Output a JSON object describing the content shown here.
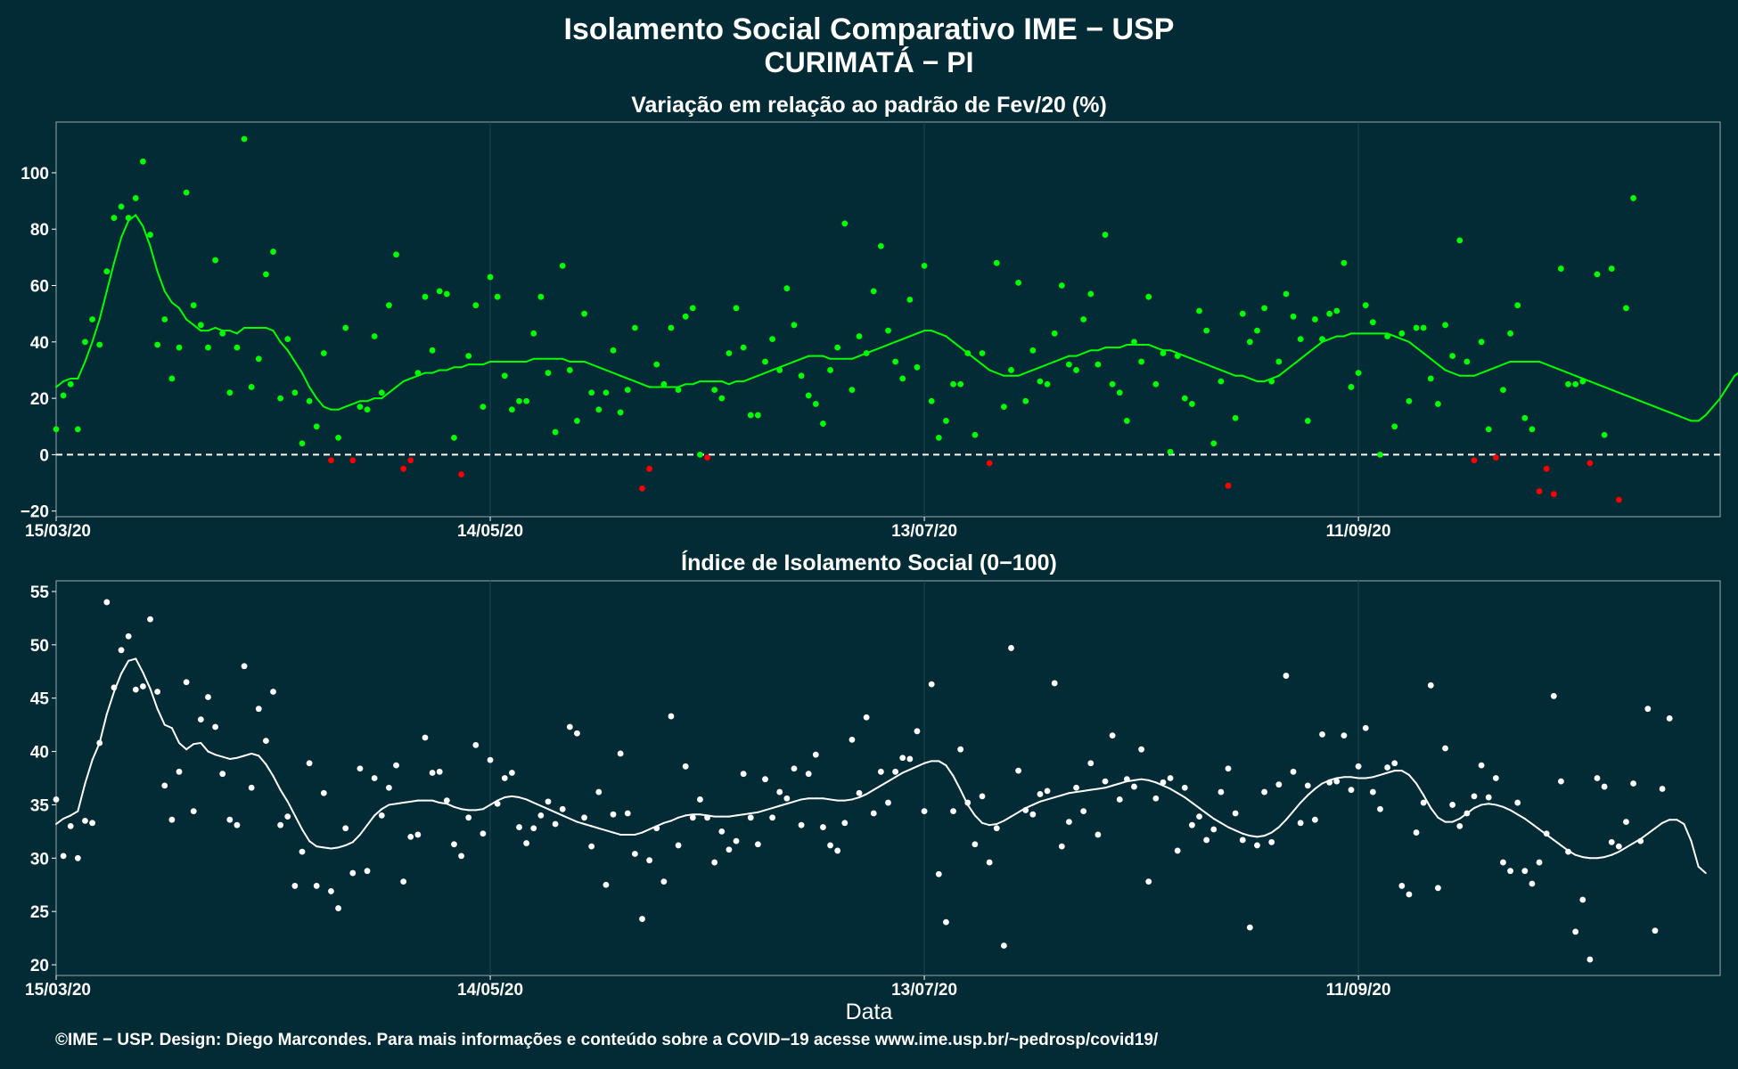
{
  "header": {
    "title": "Isolamento Social Comparativo IME − USP",
    "location": "CURIMATÁ − PI"
  },
  "xlabel": "Data",
  "footer": "©IME − USP. Design: Diego Marcondes. Para mais informações e conteúdo sobre a COVID−19 acesse www.ime.usp.br/~pedrosp/covid19/",
  "colors": {
    "background": "#022b35",
    "above": "#00ff00",
    "below": "#ff0000",
    "index": "#ffffff",
    "gridline": "#1f4450"
  },
  "chart_data": [
    {
      "type": "scatter",
      "title": "Variação em relação ao padrão de Fev/20 (%)",
      "x_start": "15/03/20",
      "x_ticks": [
        "15/03/20",
        "14/05/20",
        "13/07/20",
        "11/09/20"
      ],
      "x_tick_days": [
        0,
        60,
        120,
        180
      ],
      "xlim_days": [
        0,
        230
      ],
      "y_ticks": [
        -20,
        0,
        20,
        40,
        60,
        80,
        100
      ],
      "ylim": [
        -22,
        118
      ],
      "reference_line": 0,
      "values": [
        9,
        21,
        25,
        9,
        40,
        48,
        39,
        65,
        84,
        88,
        84,
        91,
        104,
        78,
        39,
        48,
        27,
        38,
        93,
        53,
        46,
        38,
        69,
        43,
        22,
        38,
        112,
        24,
        34,
        64,
        72,
        20,
        41,
        22,
        4,
        19,
        10,
        36,
        -2,
        6,
        45,
        -2,
        17,
        16,
        42,
        22,
        53,
        71,
        -5,
        -2,
        29,
        56,
        37,
        58,
        57,
        6,
        -7,
        35,
        53,
        17,
        63,
        56,
        28,
        16,
        19,
        19,
        43,
        56,
        29,
        8,
        67,
        30,
        12,
        50,
        22,
        16,
        22,
        37,
        15,
        23,
        45,
        -12,
        -5,
        32,
        25,
        45,
        23,
        49,
        52,
        0,
        -1,
        23,
        20,
        36,
        52,
        38,
        14,
        14,
        33,
        41,
        30,
        59,
        46,
        28,
        21,
        18,
        11,
        30,
        38,
        82,
        23,
        42,
        36,
        58,
        74,
        44,
        33,
        27,
        55,
        31,
        67,
        19,
        6,
        12,
        25,
        25,
        36,
        7,
        36,
        -3,
        68,
        17,
        30,
        61,
        19,
        37,
        26,
        25,
        43,
        60,
        32,
        30,
        48,
        57,
        32,
        78,
        25,
        22,
        12,
        40,
        33,
        56,
        25,
        36,
        1,
        35,
        20,
        18,
        51,
        44,
        4,
        26,
        -11,
        13,
        50,
        40,
        44,
        52,
        26,
        33,
        57,
        49,
        41,
        12,
        48,
        41,
        50,
        51,
        68,
        24,
        29,
        53,
        47,
        0,
        42,
        10,
        43,
        19,
        45,
        45,
        27,
        18,
        46,
        35,
        76,
        33,
        -2,
        40,
        9,
        -1,
        23,
        43,
        53,
        13,
        9,
        -13,
        -5,
        -14,
        66,
        25,
        25,
        26,
        -3,
        64,
        7,
        66,
        -16,
        52,
        91
      ],
      "smoothed": [
        24,
        26,
        27,
        27,
        33,
        40,
        48,
        58,
        68,
        77,
        83,
        85,
        81,
        74,
        65,
        58,
        54,
        52,
        48,
        46,
        44,
        44,
        45,
        44,
        44,
        43,
        45,
        45,
        45,
        45,
        44,
        40,
        37,
        33,
        29,
        24,
        20,
        17,
        16,
        16,
        17,
        18,
        19,
        19,
        20,
        20,
        22,
        24,
        26,
        27,
        28,
        29,
        29,
        30,
        30,
        31,
        31,
        32,
        32,
        32,
        33,
        33,
        33,
        33,
        33,
        33,
        34,
        34,
        34,
        34,
        34,
        33,
        33,
        33,
        32,
        31,
        30,
        29,
        28,
        27,
        26,
        25,
        24,
        24,
        24,
        24,
        24,
        25,
        25,
        26,
        26,
        26,
        26,
        25,
        26,
        26,
        27,
        28,
        29,
        30,
        31,
        32,
        33,
        34,
        35,
        35,
        35,
        34,
        34,
        34,
        34,
        35,
        36,
        37,
        38,
        39,
        40,
        41,
        42,
        43,
        44,
        44,
        43,
        42,
        40,
        38,
        36,
        34,
        32,
        30,
        29,
        28,
        28,
        28,
        29,
        30,
        31,
        32,
        33,
        34,
        35,
        35,
        36,
        37,
        37,
        38,
        38,
        38,
        39,
        39,
        39,
        39,
        38,
        37,
        37,
        36,
        35,
        34,
        33,
        32,
        31,
        30,
        29,
        28,
        28,
        27,
        26,
        26,
        27,
        28,
        30,
        32,
        34,
        36,
        38,
        40,
        41,
        42,
        42,
        43,
        43,
        43,
        43,
        43,
        43,
        42,
        41,
        40,
        38,
        36,
        34,
        32,
        30,
        29,
        28,
        28,
        28,
        29,
        30,
        31,
        32,
        33,
        33,
        33,
        33,
        33,
        32,
        31,
        30,
        29,
        28,
        27,
        26,
        25,
        24,
        23,
        22,
        21,
        20,
        19,
        18,
        17,
        16,
        15,
        14,
        13,
        12,
        12,
        14,
        17,
        20,
        24,
        28,
        30,
        31,
        33,
        37,
        41
      ]
    },
    {
      "type": "scatter",
      "title": "Índice de Isolamento Social (0−100)",
      "x_start": "15/03/20",
      "x_ticks": [
        "15/03/20",
        "14/05/20",
        "13/07/20",
        "11/09/20"
      ],
      "x_tick_days": [
        0,
        60,
        120,
        180
      ],
      "xlim_days": [
        0,
        230
      ],
      "y_ticks": [
        20,
        25,
        30,
        35,
        40,
        45,
        50,
        55
      ],
      "ylim": [
        19,
        56
      ],
      "values": [
        35.5,
        30.2,
        33,
        30,
        33.5,
        33.3,
        40.8,
        54,
        46,
        49.5,
        50.8,
        45.8,
        46.1,
        52.4,
        45.6,
        36.8,
        33.6,
        38.1,
        46.5,
        34.4,
        43,
        45.1,
        42.3,
        37.9,
        33.6,
        33.1,
        48,
        36.6,
        44,
        41,
        45.6,
        33.1,
        33.9,
        27.4,
        30.6,
        38.9,
        27.4,
        36.1,
        26.9,
        25.3,
        32.8,
        28.6,
        38.4,
        28.8,
        37.5,
        34,
        36.6,
        38.7,
        27.8,
        32,
        32.2,
        41.3,
        38,
        38.1,
        35.4,
        31.3,
        30.2,
        33.8,
        40.6,
        32.3,
        39.2,
        35.1,
        37.5,
        38,
        32.9,
        31.4,
        32.8,
        34,
        35.3,
        33.2,
        34.6,
        42.3,
        41.7,
        33.8,
        31.1,
        36.2,
        27.5,
        34.1,
        39.8,
        34.2,
        30.4,
        24.3,
        29.8,
        32.8,
        27.8,
        43.3,
        31.2,
        38.6,
        33.8,
        35.5,
        33.8,
        29.6,
        32.5,
        30.8,
        31.6,
        37.9,
        33.8,
        31.3,
        37.4,
        33.8,
        36.2,
        35.6,
        38.4,
        33.1,
        37.9,
        39.7,
        32.9,
        31.2,
        30.7,
        33.3,
        41.1,
        36.1,
        43.2,
        34.2,
        38.1,
        35.2,
        38.1,
        39.4,
        39.3,
        41.9,
        34.4,
        46.3,
        28.5,
        24,
        34.4,
        40.2,
        35.2,
        31.3,
        35.8,
        29.6,
        32.8,
        21.8,
        49.7,
        38.2,
        34.5,
        34.1,
        36,
        36.3,
        46.4,
        31.1,
        33.4,
        36.6,
        34.4,
        38.9,
        32.2,
        37.2,
        41.5,
        35.5,
        37.4,
        36.7,
        40.2,
        27.8,
        35.6,
        37.1,
        37.5,
        30.7,
        36.6,
        33.1,
        33.9,
        31.7,
        32.7,
        36.2,
        38.4,
        34.2,
        31.7,
        23.5,
        31.2,
        36.2,
        31.5,
        36.9,
        47.1,
        38.1,
        33.3,
        36.8,
        33.6,
        41.6,
        37.1,
        37.2,
        41.5,
        36.4,
        38.6,
        42.2,
        36.2,
        34.6,
        38.5,
        38.9,
        27.4,
        26.6,
        32.4,
        35.2,
        46.2,
        27.2,
        40.3,
        35,
        33,
        34.2,
        35.8,
        38.7,
        35.7,
        37.5,
        29.6,
        28.8,
        35.2,
        28.8,
        27.6,
        29.6,
        32.3,
        45.2,
        37.2,
        30.6,
        23.1,
        26.1,
        20.5,
        37.5,
        36.7,
        31.5,
        31.1,
        33.4,
        37,
        31.6,
        44,
        23.2,
        36.5,
        43.1
      ],
      "smoothed": [
        33.2,
        33.7,
        34,
        34.4,
        37,
        39.2,
        40.8,
        43.5,
        45.6,
        47.3,
        48.5,
        48.7,
        47.4,
        45.9,
        44,
        42.5,
        42.2,
        40.8,
        40.2,
        40.7,
        40.8,
        40,
        39.7,
        39.5,
        39.3,
        39.4,
        39.6,
        39.8,
        39.6,
        38.8,
        37.7,
        36.4,
        35.3,
        34,
        32.7,
        31.6,
        31.1,
        31,
        30.9,
        31,
        31.2,
        31.5,
        32.2,
        33.1,
        34,
        34.6,
        35,
        35.1,
        35.2,
        35.3,
        35.4,
        35.4,
        35.4,
        35.2,
        35.1,
        34.8,
        34.6,
        34.5,
        34.5,
        34.6,
        35,
        35.4,
        35.7,
        35.8,
        35.7,
        35.5,
        35.2,
        34.9,
        34.6,
        34.3,
        34,
        33.7,
        33.4,
        33.2,
        33,
        32.8,
        32.6,
        32.4,
        32.2,
        32.2,
        32.2,
        32.4,
        32.7,
        33,
        33.3,
        33.5,
        33.8,
        34,
        34.1,
        34.1,
        34,
        33.9,
        33.9,
        33.9,
        34,
        34.1,
        34.2,
        34.3,
        34.5,
        34.7,
        34.9,
        35.1,
        35.3,
        35.5,
        35.6,
        35.6,
        35.6,
        35.5,
        35.4,
        35.4,
        35.5,
        35.7,
        36,
        36.4,
        36.8,
        37.2,
        37.6,
        38,
        38.3,
        38.6,
        38.9,
        39.1,
        39.1,
        38.7,
        37.7,
        36.4,
        35,
        34,
        33.3,
        33.1,
        33.2,
        33.5,
        33.9,
        34.3,
        34.7,
        35,
        35.3,
        35.5,
        35.7,
        35.9,
        36.1,
        36.2,
        36.3,
        36.4,
        36.5,
        36.6,
        36.8,
        37,
        37.2,
        37.3,
        37.4,
        37.3,
        37.1,
        36.8,
        36.5,
        36.1,
        35.7,
        35.2,
        34.7,
        34.2,
        33.7,
        33.3,
        32.9,
        32.6,
        32.3,
        32.1,
        32,
        32.1,
        32.4,
        32.9,
        33.6,
        34.4,
        35.2,
        35.9,
        36.5,
        37,
        37.3,
        37.5,
        37.6,
        37.6,
        37.5,
        37.5,
        37.6,
        37.8,
        38,
        38.2,
        38.2,
        37.8,
        37,
        35.9,
        34.7,
        33.8,
        33.4,
        33.4,
        33.7,
        34.2,
        34.7,
        35,
        35.1,
        35,
        34.8,
        34.5,
        34.1,
        33.7,
        33.2,
        32.7,
        32.2,
        31.7,
        31.2,
        30.7,
        30.3,
        30.1,
        30,
        30,
        30.1,
        30.3,
        30.6,
        31,
        31.4,
        31.8,
        32.3,
        32.8,
        33.3,
        33.6,
        33.6,
        33.2,
        31.6,
        29.2,
        28.6
      ]
    }
  ]
}
